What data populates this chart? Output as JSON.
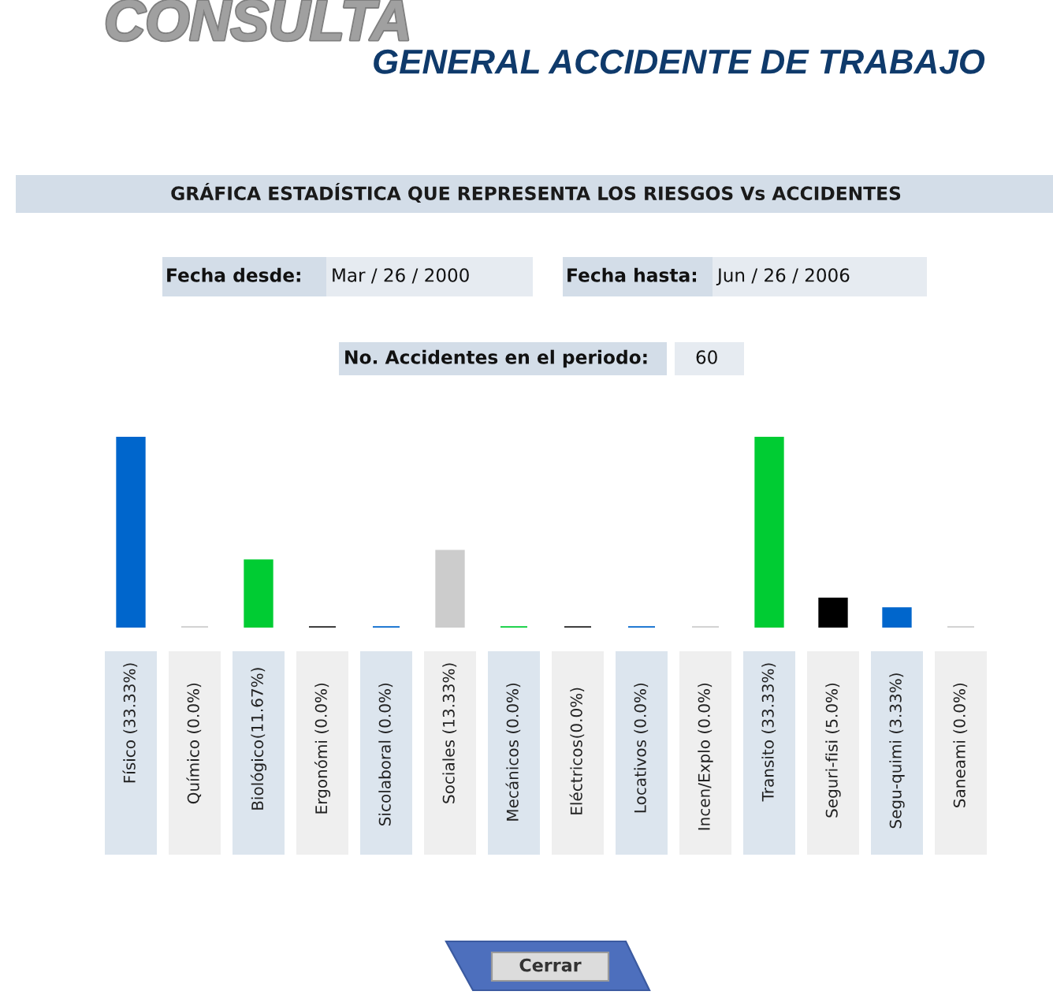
{
  "chart_data": {
    "type": "bar",
    "title": "GRÁFICA ESTADÍSTICA QUE REPRESENTA LOS RIESGOS Vs ACCIDENTES",
    "categories": [
      "Físico",
      "Químico",
      "Biológico",
      "Ergonómi",
      "Sicolaboral",
      "Sociales",
      "Mecánicos",
      "Eléctricos",
      "Locativos",
      "Incen/Explo",
      "Transito",
      "Seguri-fisi",
      "Segu-quimi",
      "Saneami"
    ],
    "values": [
      33.33,
      0.0,
      11.67,
      0.0,
      0.0,
      13.33,
      0.0,
      0.0,
      0.0,
      0.0,
      33.33,
      5.0,
      3.33,
      0.0
    ],
    "value_labels": [
      "(33.33%)",
      "(0.0%)",
      "(11.67%)",
      "(0.0%)",
      "(0.0%)",
      "(13.33%)",
      "(0.0%)",
      "(0.0%)",
      "(0.0%)",
      "(0.0%)",
      "(33.33%)",
      "(5.0%)",
      "(3.33%)",
      "(0.0%)"
    ],
    "colors": [
      "#0066cc",
      "#cccccc",
      "#00cc33",
      "#222222",
      "#0066cc",
      "#cccccc",
      "#00cc33",
      "#222222",
      "#0066cc",
      "#cccccc",
      "#00cc33",
      "#000000",
      "#0066cc",
      "#cccccc"
    ],
    "annotations": [
      "CONSULTA",
      "GENERAL ACCIDENTE DE TRABAJO",
      "Fecha desde:",
      "Mar / 26 / 2000",
      "Fecha hasta:",
      "Jun / 26 / 2006",
      "No. Accidentes en el periodo:",
      "60",
      "Cerrar"
    ],
    "tick_labels": "x"
  }
}
